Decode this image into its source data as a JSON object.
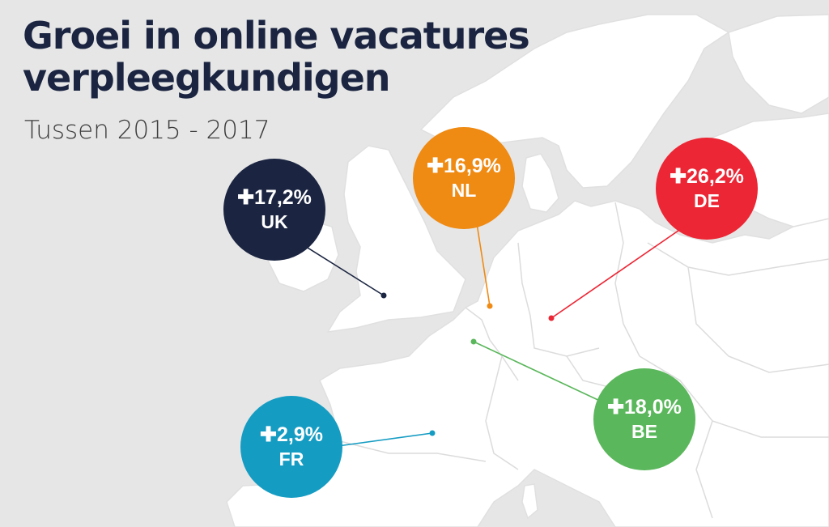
{
  "header": {
    "title_line1": "Groei in online vacatures",
    "title_line2": "verpleegkundigen",
    "subtitle": "Tussen 2015 - 2017"
  },
  "markers": {
    "uk": {
      "value": "✚17,2%",
      "country": "UK",
      "color": "#1b2541"
    },
    "nl": {
      "value": "✚16,9%",
      "country": "NL",
      "color": "#ef8a13"
    },
    "de": {
      "value": "✚26,2%",
      "country": "DE",
      "color": "#ec2634"
    },
    "be": {
      "value": "✚18,0%",
      "country": "BE",
      "color": "#5bb75c"
    },
    "fr": {
      "value": "✚2,9%",
      "country": "FR",
      "color": "#159cc3"
    }
  },
  "map_colors": {
    "sea": "#e6e6e6",
    "land": "#ffffff",
    "borders": "#dcdcdc"
  }
}
